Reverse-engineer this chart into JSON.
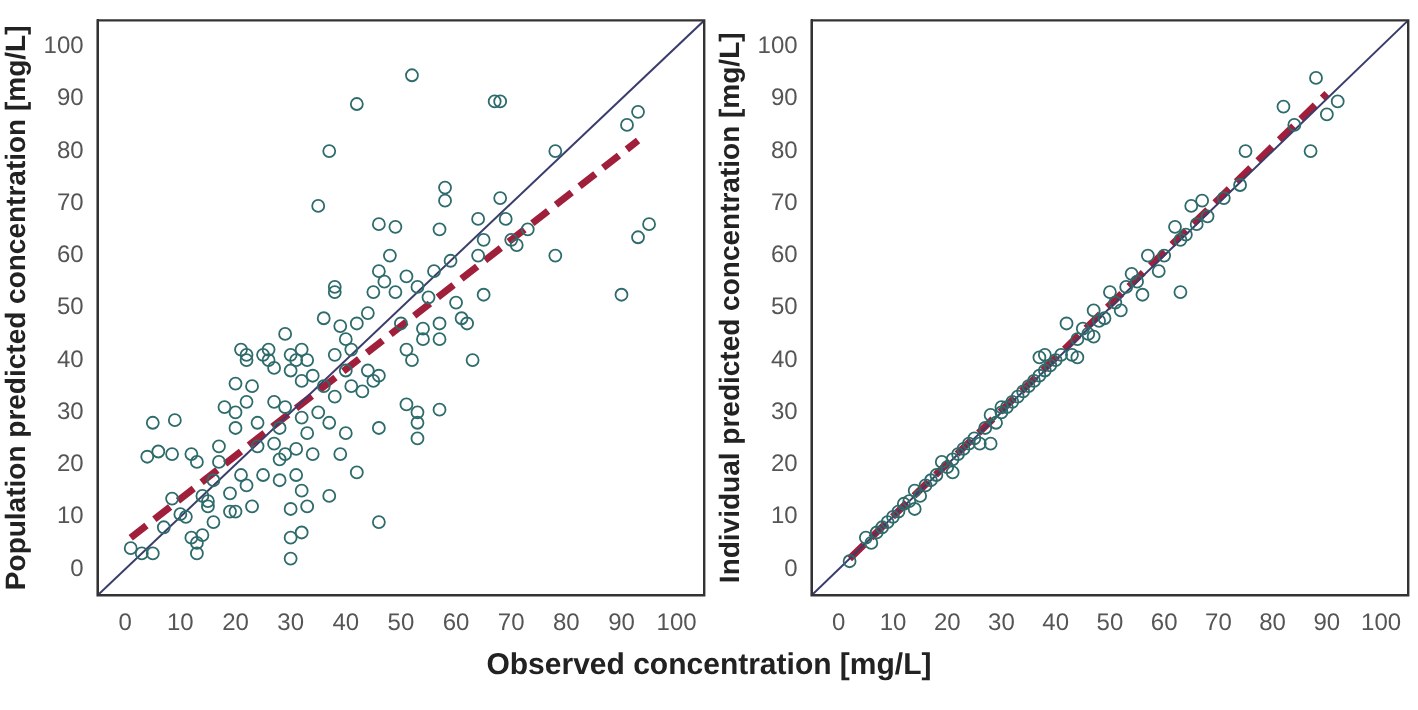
{
  "chart_data": [
    {
      "type": "scatter",
      "ylabel": "Population predicted concentration [mg/L]",
      "xlabel": "Observed concentration [mg/L]",
      "xlim": [
        -5,
        105
      ],
      "ylim": [
        -5,
        105
      ],
      "xticks": [
        0,
        10,
        20,
        30,
        40,
        50,
        60,
        70,
        80,
        90,
        100
      ],
      "yticks": [
        0,
        10,
        20,
        30,
        40,
        50,
        60,
        70,
        80,
        90,
        100
      ],
      "grid": false,
      "legend": false,
      "marker": "circle",
      "series": [
        {
          "color": "#2e6b6b",
          "x": [
            1,
            3,
            5,
            4,
            5,
            6,
            9,
            8.5,
            8.5,
            10,
            11,
            7,
            12,
            13,
            12,
            13,
            13,
            14,
            14,
            15,
            15,
            16,
            16,
            17,
            17,
            18,
            19,
            19,
            20,
            20,
            20,
            20,
            21,
            22,
            22,
            21,
            22,
            22,
            23,
            23,
            24,
            24,
            25,
            25,
            26,
            26,
            27,
            27,
            27,
            28,
            28,
            28,
            29,
            29,
            29,
            30,
            30,
            30,
            30,
            30,
            31,
            31,
            31,
            32,
            32,
            32,
            32,
            32,
            33,
            33,
            33,
            34,
            34,
            35,
            35,
            36,
            36,
            37,
            37,
            37,
            38,
            38,
            38,
            38,
            39,
            39,
            40,
            40,
            40,
            41,
            41,
            42,
            42,
            42,
            43,
            44,
            44,
            45,
            45,
            46,
            46,
            46,
            46,
            46,
            47,
            48,
            49,
            49,
            50,
            51,
            51,
            51,
            52,
            52,
            53,
            53,
            53,
            53,
            54,
            54,
            55,
            56,
            57,
            57,
            57,
            57,
            58,
            58,
            59,
            60,
            61,
            62,
            63,
            64,
            64,
            65,
            65,
            67,
            68,
            68,
            69,
            70,
            71,
            73,
            78,
            78,
            90,
            91,
            93,
            93,
            95
          ],
          "values": [
            4,
            3,
            3,
            21.5,
            28,
            22.5,
            28.5,
            22,
            13.5,
            10.5,
            10,
            8,
            22,
            20.5,
            6,
            5,
            3,
            6.5,
            14,
            12,
            13,
            9,
            17,
            23.5,
            20.5,
            31,
            14.5,
            11,
            11,
            27,
            30,
            35.5,
            42,
            41,
            40,
            18,
            16,
            32,
            35,
            12,
            23.5,
            28,
            41,
            18,
            42,
            40,
            38.5,
            32,
            24,
            27,
            21,
            17,
            22,
            45,
            31,
            38,
            41,
            11.5,
            6,
            2,
            18,
            23,
            40,
            42,
            36,
            29,
            15,
            7,
            40,
            26,
            12,
            37,
            22,
            30,
            69.5,
            48,
            35,
            80,
            14,
            28,
            53,
            54,
            41,
            33,
            46.5,
            22,
            44,
            38,
            26,
            42,
            35,
            89,
            18.5,
            47,
            34,
            49,
            38,
            53,
            36,
            57,
            66,
            37,
            27,
            9,
            55,
            60,
            53,
            65.5,
            47,
            42,
            31.5,
            56,
            94.5,
            40,
            30,
            28,
            25,
            54,
            46,
            44,
            52,
            57,
            47,
            44,
            30.5,
            65,
            73,
            70.5,
            59,
            51,
            48,
            47,
            40,
            67,
            60,
            52.5,
            63,
            89.5,
            89.5,
            71,
            67,
            63,
            62,
            65,
            80,
            60,
            52.5,
            85,
            87.5,
            63.5,
            66
          ]
        },
        {
          "type": "line",
          "color": "#3a3d6b",
          "line_style": "solid",
          "marker": "none",
          "x": [
            -5,
            105
          ],
          "values": [
            -5,
            105
          ]
        },
        {
          "type": "line",
          "color": "#a0203c",
          "line_style": "dashed",
          "marker": "none",
          "x": [
            1,
            93
          ],
          "values": [
            6,
            82
          ]
        }
      ]
    },
    {
      "type": "scatter",
      "ylabel": "Individual predicted concentration [mg/L]",
      "xlim": [
        -5,
        105
      ],
      "ylim": [
        -5,
        105
      ],
      "xticks": [
        0,
        10,
        20,
        30,
        40,
        50,
        60,
        70,
        80,
        90,
        100
      ],
      "yticks": [
        0,
        10,
        20,
        30,
        40,
        50,
        60,
        70,
        80,
        90,
        100
      ],
      "grid": false,
      "legend": false,
      "marker": "circle",
      "series": [
        {
          "color": "#2e6b6b",
          "x": [
            2,
            5,
            6,
            7,
            8,
            9,
            10,
            11,
            12,
            13,
            14,
            14,
            15,
            16,
            17,
            18,
            19,
            20,
            21,
            21,
            22,
            23,
            24,
            25,
            26,
            27,
            28,
            28,
            29,
            30,
            30,
            31,
            32,
            33,
            34,
            35,
            36,
            37,
            37,
            38,
            38,
            39,
            40,
            41,
            42,
            43,
            44,
            44,
            45,
            46,
            47,
            47,
            48,
            49,
            50,
            51,
            52,
            53,
            54,
            55,
            56,
            57,
            59,
            60,
            62,
            63,
            63,
            64,
            65,
            66,
            67,
            68,
            71,
            74,
            75,
            82,
            84,
            87,
            88,
            90,
            92
          ],
          "values": [
            1.5,
            6,
            5,
            7,
            8,
            9,
            10,
            11,
            12.5,
            13,
            15,
            11.5,
            14,
            16,
            17,
            18,
            20.5,
            19.5,
            18.5,
            21,
            22,
            23,
            24,
            25,
            24,
            27,
            29.5,
            24,
            28,
            30,
            31,
            31,
            32,
            33,
            34,
            35,
            36,
            37,
            40.5,
            38,
            41,
            39,
            40,
            41,
            47,
            41,
            44,
            40.5,
            46,
            45,
            49.5,
            44.5,
            47.5,
            48,
            53,
            51,
            49.5,
            54,
            56.5,
            55,
            52.5,
            60,
            57,
            60,
            65.5,
            63,
            53,
            64,
            69.5,
            66,
            70.5,
            67.5,
            71,
            73.5,
            80,
            88.5,
            85,
            80,
            94,
            87,
            89.5
          ]
        },
        {
          "type": "line",
          "color": "#3a3d6b",
          "line_style": "solid",
          "marker": "none",
          "x": [
            -5,
            105
          ],
          "values": [
            -5,
            105
          ]
        },
        {
          "type": "line",
          "color": "#a0203c",
          "line_style": "dashed",
          "marker": "none",
          "x": [
            2,
            90
          ],
          "values": [
            2,
            91
          ]
        }
      ]
    }
  ]
}
